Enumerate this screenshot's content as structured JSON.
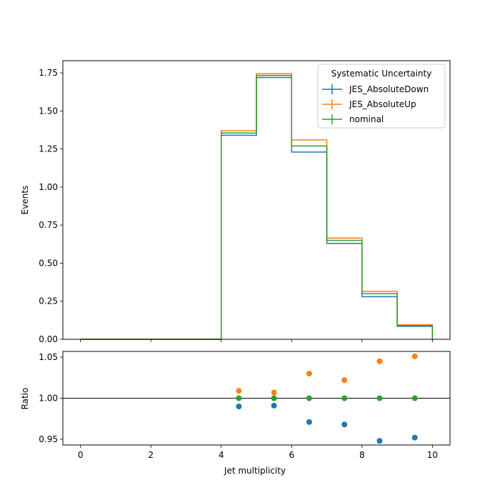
{
  "chart_data": [
    {
      "type": "step",
      "panel": "main",
      "xlabel": "",
      "ylabel": "Events",
      "xlim": [
        -0.5,
        10.5
      ],
      "ylim": [
        0,
        1.83
      ],
      "xticks": [
        0,
        2,
        4,
        6,
        8,
        10
      ],
      "yticks": [
        0.0,
        0.25,
        0.5,
        0.75,
        1.0,
        1.25,
        1.5,
        1.75
      ],
      "ytick_labels": [
        "0.00",
        "0.25",
        "0.50",
        "0.75",
        "1.00",
        "1.25",
        "1.50",
        "1.75"
      ],
      "grid": false,
      "legend": {
        "title": "Systematic Uncertainty",
        "placement": "top-right"
      },
      "bin_edges": [
        0,
        1,
        2,
        3,
        4,
        5,
        6,
        7,
        8,
        9,
        10
      ],
      "series": [
        {
          "name": "JES_AbsoluteDown",
          "color": "#1f77b4",
          "values": [
            0,
            0,
            0,
            0,
            1.34,
            1.72,
            1.23,
            0.63,
            0.28,
            0.085
          ]
        },
        {
          "name": "JES_AbsoluteUp",
          "color": "#ff7f0e",
          "values": [
            0,
            0,
            0,
            0,
            1.37,
            1.745,
            1.31,
            0.665,
            0.315,
            0.095
          ]
        },
        {
          "name": "nominal",
          "color": "#2ca02c",
          "values": [
            0,
            0,
            0,
            0,
            1.355,
            1.733,
            1.27,
            0.65,
            0.3,
            0.09
          ]
        }
      ]
    },
    {
      "type": "scatter",
      "panel": "ratio",
      "xlabel": "Jet multiplicity",
      "ylabel": "Ratio",
      "xlim": [
        -0.5,
        10.5
      ],
      "ylim": [
        0.943,
        1.057
      ],
      "xticks": [
        0,
        2,
        4,
        6,
        8,
        10
      ],
      "xtick_labels": [
        "0",
        "2",
        "4",
        "6",
        "8",
        "10"
      ],
      "yticks": [
        0.95,
        1.0,
        1.05
      ],
      "ytick_labels": [
        "0.95",
        "1.00",
        "1.05"
      ],
      "reference_line": 1.0,
      "x": [
        4.5,
        5.5,
        6.5,
        7.5,
        8.5,
        9.5
      ],
      "series": [
        {
          "color": "#1f77b4",
          "values": [
            0.99,
            0.991,
            0.971,
            0.968,
            0.948,
            0.952
          ]
        },
        {
          "color": "#ff7f0e",
          "values": [
            1.009,
            1.007,
            1.03,
            1.022,
            1.045,
            1.051
          ]
        },
        {
          "color": "#2ca02c",
          "values": [
            1.0,
            1.0,
            1.0,
            1.0,
            1.0,
            1.0
          ]
        }
      ]
    }
  ]
}
